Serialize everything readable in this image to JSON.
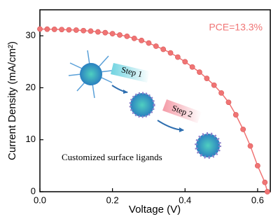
{
  "chart_data": {
    "type": "line",
    "x_label": "Voltage (V)",
    "y_label": "Current Density (mA/cm²)",
    "x": [
      0,
      0.02,
      0.04,
      0.06,
      0.08,
      0.1,
      0.12,
      0.14,
      0.16,
      0.18,
      0.2,
      0.22,
      0.24,
      0.26,
      0.28,
      0.3,
      0.32,
      0.34,
      0.36,
      0.38,
      0.4,
      0.42,
      0.44,
      0.46,
      0.48,
      0.5,
      0.52,
      0.54,
      0.56,
      0.58,
      0.6,
      0.62,
      0.627
    ],
    "series": [
      {
        "color": "#f07474",
        "values": [
          31.3,
          31.27,
          31.24,
          31.2,
          31.15,
          31.1,
          31.0,
          30.9,
          30.75,
          30.6,
          30.4,
          30.15,
          29.9,
          29.5,
          29.1,
          28.6,
          28.0,
          27.4,
          26.7,
          25.9,
          25.0,
          24.0,
          23.0,
          21.8,
          20.5,
          19.0,
          17.2,
          14.8,
          12.0,
          8.8,
          5.0,
          1.8,
          0
        ]
      }
    ],
    "xlim": [
      0,
      0.635
    ],
    "xticks": [
      {
        "value": 0,
        "label": "0.0"
      },
      0.2,
      0.4,
      0.6
    ],
    "ylim": [
      0,
      35
    ],
    "yticks": [
      0,
      10,
      20,
      30
    ],
    "annotations": [
      "PCE=13.3%",
      "Step 1",
      "Step 2",
      "Customized surface ligands"
    ]
  }
}
